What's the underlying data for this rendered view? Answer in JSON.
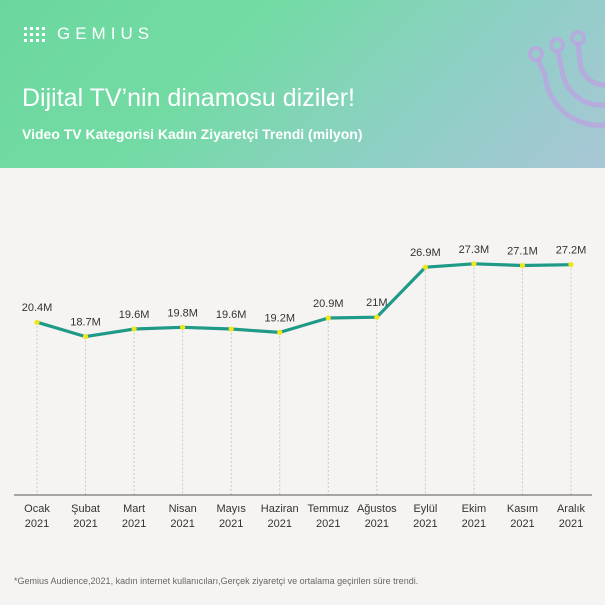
{
  "header": {
    "logo_text": "GEMIUS",
    "title": "Dijital TV’nin dinamosu diziler!",
    "subtitle": "Video TV Kategorisi Kadın Ziyaretçi Trendi (milyon)"
  },
  "footnote": "*Gemius Audience,2021, kadın internet kullanıcıları,Gerçek ziyaretçi ve ortalama geçirilen süre trendi.",
  "colors": {
    "line": "#1e9a87",
    "marker": "#f2e51b",
    "header_start": "#6bd79f",
    "header_end": "#a9c6d6",
    "deco": "#b9a7e0"
  },
  "chart_data": {
    "type": "line",
    "categories": [
      [
        "Ocak",
        "2021"
      ],
      [
        "Şubat",
        "2021"
      ],
      [
        "Mart",
        "2021"
      ],
      [
        "Nisan",
        "2021"
      ],
      [
        "Mayıs",
        "2021"
      ],
      [
        "Haziran",
        "2021"
      ],
      [
        "Temmuz",
        "2021"
      ],
      [
        "Ağustos",
        "2021"
      ],
      [
        "Eylül",
        "2021"
      ],
      [
        "Ekim",
        "2021"
      ],
      [
        "Kasım",
        "2021"
      ],
      [
        "Aralık",
        "2021"
      ]
    ],
    "values": [
      20.4,
      18.7,
      19.6,
      19.8,
      19.6,
      19.2,
      20.9,
      21,
      26.9,
      27.3,
      27.1,
      27.2
    ],
    "data_labels": [
      "20.4M",
      "18.7M",
      "19.6M",
      "19.8M",
      "19.6M",
      "19.2M",
      "20.9M",
      "21M",
      "26.9M",
      "27.3M",
      "27.1M",
      "27.2M"
    ],
    "title": "Video TV Kategorisi Kadın Ziyaretçi Trendi (milyon)",
    "xlabel": "",
    "ylabel": "",
    "ylim": [
      0,
      32
    ],
    "grid": "vertical dashed lines"
  }
}
